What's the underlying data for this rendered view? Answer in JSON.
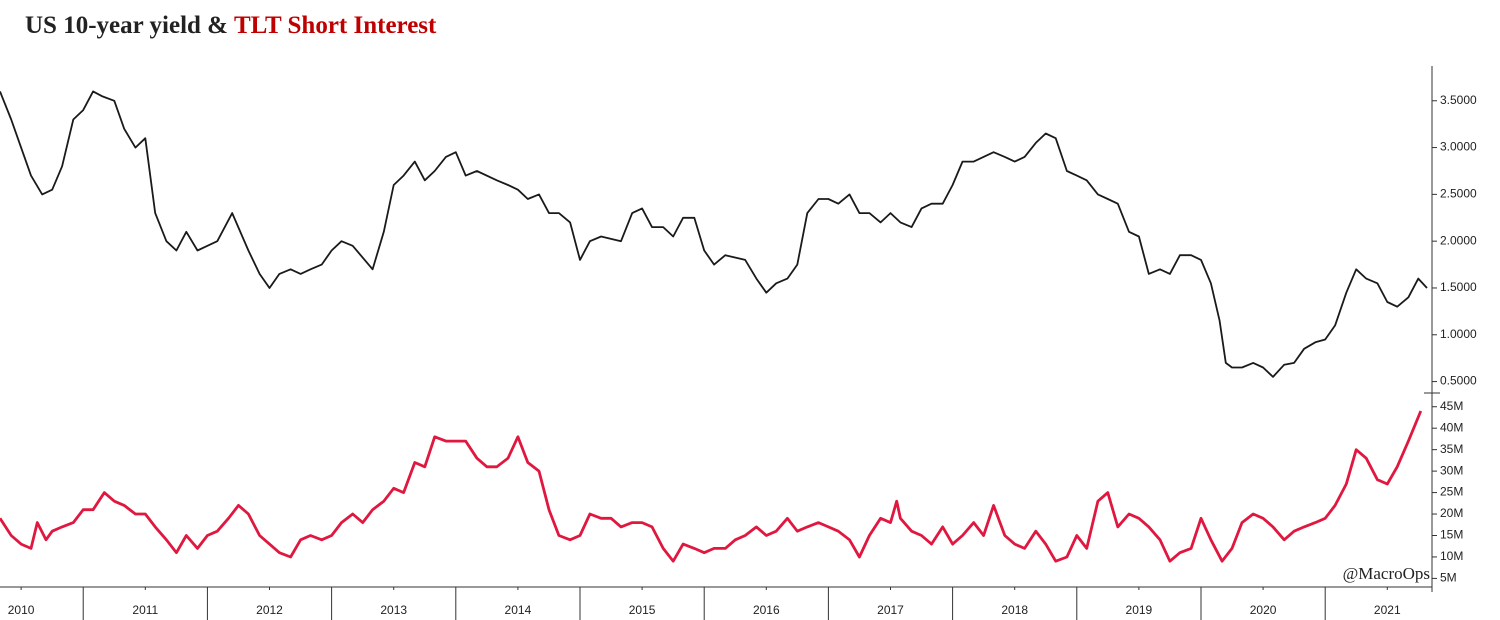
{
  "chart_data": [
    {
      "type": "line",
      "title": "US 10-year yield &",
      "x": [
        2010.33,
        2010.42,
        2010.5,
        2010.58,
        2010.67,
        2010.75,
        2010.83,
        2010.92,
        2011.0,
        2011.08,
        2011.15,
        2011.25,
        2011.33,
        2011.42,
        2011.5,
        2011.58,
        2011.67,
        2011.75,
        2011.83,
        2011.92,
        2012.0,
        2012.08,
        2012.2,
        2012.33,
        2012.42,
        2012.5,
        2012.58,
        2012.67,
        2012.75,
        2012.83,
        2012.92,
        2013.0,
        2013.08,
        2013.17,
        2013.33,
        2013.42,
        2013.5,
        2013.58,
        2013.67,
        2013.75,
        2013.83,
        2013.92,
        2014.0,
        2014.08,
        2014.17,
        2014.33,
        2014.42,
        2014.5,
        2014.58,
        2014.67,
        2014.75,
        2014.83,
        2014.92,
        2015.0,
        2015.08,
        2015.17,
        2015.33,
        2015.42,
        2015.5,
        2015.58,
        2015.67,
        2015.75,
        2015.83,
        2015.92,
        2016.0,
        2016.08,
        2016.17,
        2016.33,
        2016.42,
        2016.5,
        2016.58,
        2016.67,
        2016.75,
        2016.83,
        2016.92,
        2017.0,
        2017.08,
        2017.17,
        2017.25,
        2017.33,
        2017.42,
        2017.5,
        2017.58,
        2017.67,
        2017.75,
        2017.83,
        2017.92,
        2018.0,
        2018.08,
        2018.17,
        2018.33,
        2018.42,
        2018.5,
        2018.58,
        2018.67,
        2018.75,
        2018.83,
        2018.92,
        2019.0,
        2019.08,
        2019.17,
        2019.25,
        2019.33,
        2019.42,
        2019.5,
        2019.58,
        2019.67,
        2019.75,
        2019.83,
        2019.92,
        2020.0,
        2020.08,
        2020.15,
        2020.2,
        2020.25,
        2020.33,
        2020.42,
        2020.5,
        2020.58,
        2020.67,
        2020.75,
        2020.83,
        2020.92,
        2021.0,
        2021.08,
        2021.17,
        2021.25,
        2021.33,
        2021.42,
        2021.5,
        2021.58,
        2021.67,
        2021.75,
        2021.82
      ],
      "series": [
        {
          "color": "#1a1a1a",
          "values": [
            3.6,
            3.3,
            3.0,
            2.7,
            2.5,
            2.55,
            2.8,
            3.3,
            3.4,
            3.6,
            3.55,
            3.5,
            3.2,
            3.0,
            3.1,
            2.3,
            2.0,
            1.9,
            2.1,
            1.9,
            1.95,
            2.0,
            2.3,
            1.9,
            1.65,
            1.5,
            1.65,
            1.7,
            1.65,
            1.7,
            1.75,
            1.9,
            2.0,
            1.95,
            1.7,
            2.1,
            2.6,
            2.7,
            2.85,
            2.65,
            2.75,
            2.9,
            2.95,
            2.7,
            2.75,
            2.65,
            2.6,
            2.55,
            2.45,
            2.5,
            2.3,
            2.3,
            2.2,
            1.8,
            2.0,
            2.05,
            2.0,
            2.3,
            2.35,
            2.15,
            2.15,
            2.05,
            2.25,
            2.25,
            1.9,
            1.75,
            1.85,
            1.8,
            1.6,
            1.45,
            1.55,
            1.6,
            1.75,
            2.3,
            2.45,
            2.45,
            2.4,
            2.5,
            2.3,
            2.3,
            2.2,
            2.3,
            2.2,
            2.15,
            2.35,
            2.4,
            2.4,
            2.6,
            2.85,
            2.85,
            2.95,
            2.9,
            2.85,
            2.9,
            3.05,
            3.15,
            3.1,
            2.75,
            2.7,
            2.65,
            2.5,
            2.45,
            2.4,
            2.1,
            2.05,
            1.65,
            1.7,
            1.65,
            1.85,
            1.85,
            1.8,
            1.55,
            1.15,
            0.7,
            0.65,
            0.65,
            0.7,
            0.65,
            0.55,
            0.68,
            0.7,
            0.85,
            0.92,
            0.95,
            1.1,
            1.45,
            1.7,
            1.6,
            1.55,
            1.35,
            1.3,
            1.4,
            1.6,
            1.5
          ]
        }
      ],
      "xlim": [
        2010.33,
        2021.86
      ],
      "ylim": [
        0.41,
        3.85
      ],
      "yticks": [
        {
          "value": 0.5,
          "label": "0.5000"
        },
        {
          "value": 1.0,
          "label": "1.0000"
        },
        {
          "value": 1.5,
          "label": "1.5000"
        },
        {
          "value": 2.0,
          "label": "2.0000"
        },
        {
          "value": 2.5,
          "label": "2.5000"
        },
        {
          "value": 3.0,
          "label": "3.0000"
        },
        {
          "value": 3.5,
          "label": "3.5000"
        }
      ]
    },
    {
      "type": "line",
      "title": "TLT Short Interest",
      "annotation": "@MacroOps",
      "x": [
        2010.33,
        2010.42,
        2010.5,
        2010.58,
        2010.63,
        2010.7,
        2010.75,
        2010.83,
        2010.92,
        2011.0,
        2011.08,
        2011.17,
        2011.25,
        2011.33,
        2011.42,
        2011.5,
        2011.58,
        2011.67,
        2011.75,
        2011.83,
        2011.92,
        2012.0,
        2012.08,
        2012.17,
        2012.25,
        2012.33,
        2012.42,
        2012.5,
        2012.58,
        2012.67,
        2012.75,
        2012.83,
        2012.92,
        2013.0,
        2013.08,
        2013.17,
        2013.25,
        2013.33,
        2013.42,
        2013.5,
        2013.58,
        2013.67,
        2013.75,
        2013.83,
        2013.92,
        2014.0,
        2014.08,
        2014.17,
        2014.25,
        2014.33,
        2014.42,
        2014.5,
        2014.58,
        2014.67,
        2014.75,
        2014.83,
        2014.92,
        2015.0,
        2015.08,
        2015.17,
        2015.25,
        2015.33,
        2015.42,
        2015.5,
        2015.58,
        2015.67,
        2015.75,
        2015.83,
        2015.92,
        2016.0,
        2016.08,
        2016.17,
        2016.25,
        2016.33,
        2016.42,
        2016.5,
        2016.58,
        2016.67,
        2016.75,
        2016.83,
        2016.92,
        2017.0,
        2017.08,
        2017.17,
        2017.25,
        2017.33,
        2017.42,
        2017.5,
        2017.55,
        2017.58,
        2017.67,
        2017.75,
        2017.83,
        2017.92,
        2018.0,
        2018.08,
        2018.17,
        2018.25,
        2018.33,
        2018.42,
        2018.5,
        2018.58,
        2018.67,
        2018.75,
        2018.83,
        2018.92,
        2019.0,
        2019.08,
        2019.17,
        2019.25,
        2019.33,
        2019.42,
        2019.5,
        2019.58,
        2019.67,
        2019.75,
        2019.83,
        2019.92,
        2020.0,
        2020.08,
        2020.17,
        2020.25,
        2020.33,
        2020.42,
        2020.5,
        2020.58,
        2020.67,
        2020.75,
        2020.83,
        2020.92,
        2021.0,
        2021.08,
        2021.17,
        2021.25,
        2021.33,
        2021.42,
        2021.5,
        2021.58,
        2021.67,
        2021.77
      ],
      "series": [
        {
          "color": "#e0173f",
          "values": [
            19,
            15,
            13,
            12,
            18,
            14,
            16,
            17,
            18,
            21,
            21,
            25,
            23,
            22,
            20,
            20,
            17,
            14,
            11,
            15,
            12,
            15,
            16,
            19,
            22,
            20,
            15,
            13,
            11,
            10,
            14,
            15,
            14,
            15,
            18,
            20,
            18,
            21,
            23,
            26,
            25,
            32,
            31,
            38,
            37,
            37,
            37,
            33,
            31,
            31,
            33,
            38,
            32,
            30,
            21,
            15,
            14,
            15,
            20,
            19,
            19,
            17,
            18,
            18,
            17,
            12,
            9,
            13,
            12,
            11,
            12,
            12,
            14,
            15,
            17,
            15,
            16,
            19,
            16,
            17,
            18,
            17,
            16,
            14,
            10,
            15,
            19,
            18,
            23,
            19,
            16,
            15,
            13,
            17,
            13,
            15,
            18,
            15,
            22,
            15,
            13,
            12,
            16,
            13,
            9,
            10,
            15,
            12,
            23,
            25,
            17,
            20,
            19,
            17,
            14,
            9,
            11,
            12,
            19,
            14,
            9,
            12,
            18,
            20,
            19,
            17,
            14,
            16,
            17,
            18,
            19,
            22,
            27,
            35,
            33,
            28,
            27,
            31,
            37,
            44
          ]
        }
      ],
      "xlim": [
        2010.33,
        2021.86
      ],
      "ylim": [
        3,
        47.5
      ],
      "yticks": [
        {
          "value": 5,
          "label": "5M"
        },
        {
          "value": 10,
          "label": "10M"
        },
        {
          "value": 15,
          "label": "15M"
        },
        {
          "value": 20,
          "label": "20M"
        },
        {
          "value": 25,
          "label": "25M"
        },
        {
          "value": 30,
          "label": "30M"
        },
        {
          "value": 35,
          "label": "35M"
        },
        {
          "value": 40,
          "label": "40M"
        },
        {
          "value": 45,
          "label": "45M"
        }
      ],
      "xticks": [
        {
          "value": 2010.5,
          "label": "2010"
        },
        {
          "value": 2011.5,
          "label": "2011"
        },
        {
          "value": 2012.5,
          "label": "2012"
        },
        {
          "value": 2013.5,
          "label": "2013"
        },
        {
          "value": 2014.5,
          "label": "2014"
        },
        {
          "value": 2015.5,
          "label": "2015"
        },
        {
          "value": 2016.5,
          "label": "2016"
        },
        {
          "value": 2017.5,
          "label": "2017"
        },
        {
          "value": 2018.5,
          "label": "2018"
        },
        {
          "value": 2019.5,
          "label": "2019"
        },
        {
          "value": 2020.5,
          "label": "2020"
        },
        {
          "value": 2021.5,
          "label": "2021"
        }
      ]
    }
  ]
}
